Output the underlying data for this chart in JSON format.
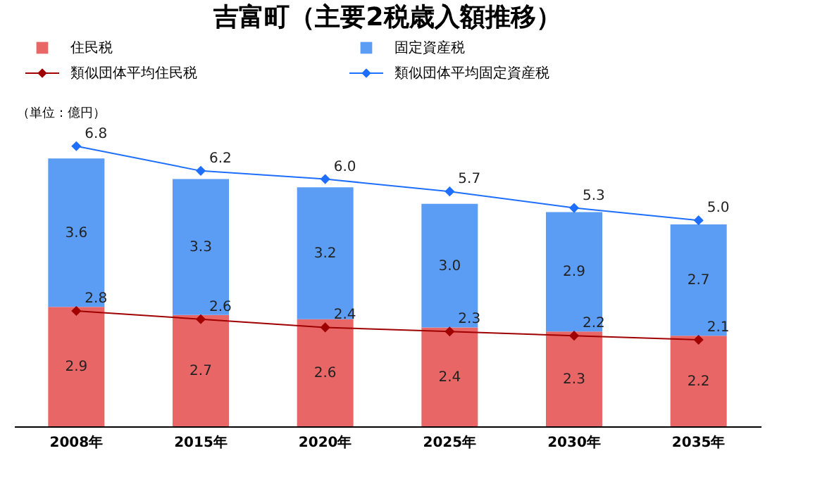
{
  "chart_data": {
    "type": "bar",
    "title": "吉富町（主要2税歳入額推移）",
    "annotations": [
      "（単位：億円）"
    ],
    "categories": [
      "2008年",
      "2015年",
      "2020年",
      "2025年",
      "2030年",
      "2035年"
    ],
    "stacked": true,
    "legend": "top",
    "tick_labels": "x",
    "marker": "diamond",
    "series": [
      {
        "name": "住民税",
        "color": "#e86666",
        "values": [
          2.9,
          2.7,
          2.6,
          2.4,
          2.3,
          2.2
        ],
        "value_labels": [
          "2.9",
          "2.7",
          "2.6",
          "2.4",
          "2.3",
          "2.2"
        ]
      },
      {
        "name": "固定資産税",
        "color": "#5b9cf5",
        "values": [
          3.6,
          3.3,
          3.2,
          3.0,
          2.9,
          2.7
        ],
        "value_labels": [
          "3.6",
          "3.3",
          "3.2",
          "3.0",
          "2.9",
          "2.7"
        ]
      },
      {
        "name": "類似団体平均住民税",
        "type": "line",
        "color": "#a00000",
        "values": [
          2.8,
          2.6,
          2.4,
          2.3,
          2.2,
          2.1
        ],
        "value_labels": [
          "2.8",
          "2.6",
          "2.4",
          "2.3",
          "2.2",
          "2.1"
        ]
      },
      {
        "name": "類似団体平均固定資産税",
        "type": "line",
        "color": "#1e6fff",
        "values": [
          6.8,
          6.2,
          6.0,
          5.7,
          5.3,
          5.0
        ],
        "value_labels": [
          "6.8",
          "6.2",
          "6.0",
          "5.7",
          "5.3",
          "5.0"
        ]
      }
    ]
  }
}
